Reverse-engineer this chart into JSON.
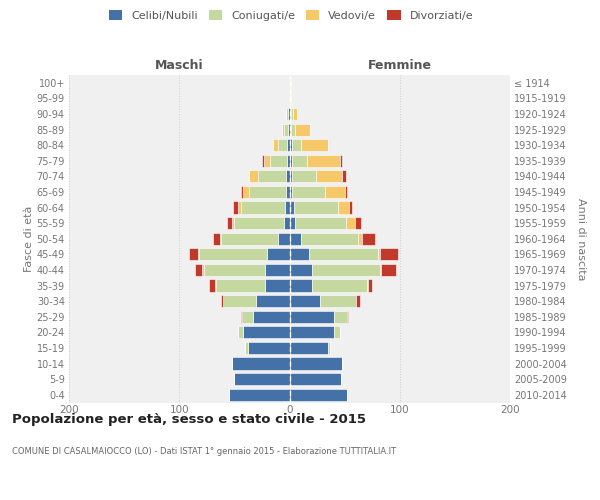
{
  "age_groups": [
    "0-4",
    "5-9",
    "10-14",
    "15-19",
    "20-24",
    "25-29",
    "30-34",
    "35-39",
    "40-44",
    "45-49",
    "50-54",
    "55-59",
    "60-64",
    "65-69",
    "70-74",
    "75-79",
    "80-84",
    "85-89",
    "90-94",
    "95-99",
    "100+"
  ],
  "birth_years": [
    "2010-2014",
    "2005-2009",
    "2000-2004",
    "1995-1999",
    "1990-1994",
    "1985-1989",
    "1980-1984",
    "1975-1979",
    "1970-1974",
    "1965-1969",
    "1960-1964",
    "1955-1959",
    "1950-1954",
    "1945-1949",
    "1940-1944",
    "1935-1939",
    "1930-1934",
    "1925-1929",
    "1920-1924",
    "1915-1919",
    "≤ 1914"
  ],
  "maschi_celibi": [
    55,
    50,
    52,
    38,
    42,
    33,
    30,
    22,
    22,
    20,
    10,
    5,
    4,
    3,
    3,
    2,
    2,
    1,
    1,
    0,
    0
  ],
  "maschi_coniugati": [
    0,
    0,
    0,
    2,
    5,
    10,
    30,
    45,
    56,
    62,
    52,
    45,
    40,
    34,
    26,
    16,
    8,
    4,
    2,
    0,
    0
  ],
  "maschi_vedovi": [
    0,
    0,
    0,
    0,
    0,
    0,
    0,
    1,
    1,
    1,
    1,
    2,
    3,
    5,
    8,
    5,
    5,
    2,
    0,
    0,
    0
  ],
  "maschi_divorziati": [
    0,
    0,
    0,
    0,
    0,
    1,
    2,
    5,
    7,
    8,
    6,
    5,
    4,
    2,
    0,
    2,
    0,
    0,
    0,
    0,
    0
  ],
  "femmine_celibi": [
    52,
    47,
    48,
    35,
    40,
    40,
    28,
    20,
    20,
    18,
    10,
    5,
    4,
    2,
    2,
    2,
    2,
    1,
    1,
    0,
    0
  ],
  "femmine_coniugati": [
    0,
    0,
    0,
    2,
    6,
    12,
    32,
    50,
    62,
    62,
    52,
    46,
    40,
    30,
    22,
    14,
    8,
    4,
    2,
    0,
    0
  ],
  "femmine_vedovi": [
    0,
    0,
    0,
    0,
    0,
    0,
    0,
    1,
    1,
    2,
    4,
    8,
    10,
    18,
    24,
    30,
    25,
    14,
    4,
    1,
    1
  ],
  "femmine_divorziati": [
    0,
    0,
    0,
    0,
    0,
    1,
    4,
    4,
    14,
    16,
    12,
    6,
    3,
    2,
    3,
    2,
    0,
    0,
    0,
    0,
    0
  ],
  "color_celibi": "#4472a8",
  "color_coniugati": "#c5d8a0",
  "color_vedovi": "#f5c96a",
  "color_divorziati": "#c0392b",
  "title": "Popolazione per età, sesso e stato civile - 2015",
  "subtitle": "COMUNE DI CASALMAIOCCO (LO) - Dati ISTAT 1° gennaio 2015 - Elaborazione TUTTITALIA.IT",
  "ylabel_left": "Fasce di età",
  "ylabel_right": "Anni di nascita",
  "xlabel_maschi": "Maschi",
  "xlabel_femmine": "Femmine",
  "xlim": 200,
  "xticks": [
    -200,
    -100,
    0,
    100,
    200
  ],
  "xticklabels": [
    "200",
    "100",
    "0",
    "100",
    "200"
  ],
  "legend_labels": [
    "Celibi/Nubili",
    "Coniugati/e",
    "Vedovi/e",
    "Divorziati/e"
  ],
  "bg_color": "#f0f0f0",
  "grid_color": "#cccccc",
  "tick_color": "#777777",
  "title_color": "#222222",
  "label_color": "#555555"
}
